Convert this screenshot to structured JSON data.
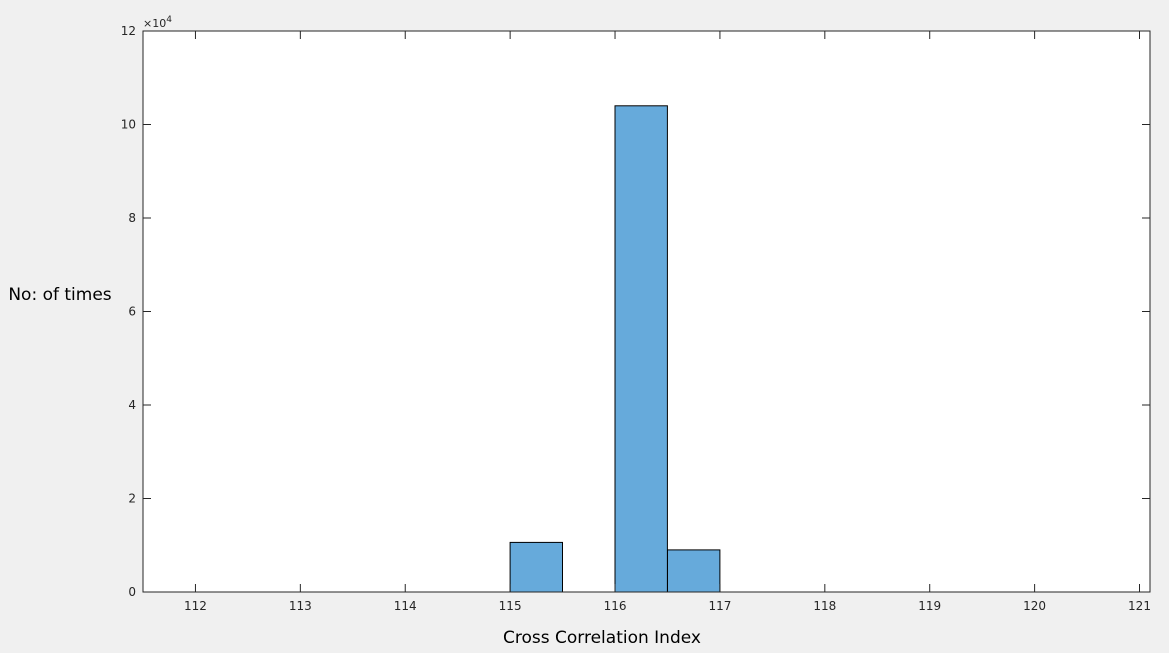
{
  "chart_data": {
    "type": "bar",
    "bin_edges": [
      111.5,
      112,
      112.5,
      113,
      113.5,
      114,
      114.5,
      115,
      115.5,
      116,
      116.5,
      117,
      117.5,
      118,
      118.5,
      119,
      119.5,
      120,
      120.5,
      121,
      121.5
    ],
    "values": [
      0,
      0,
      0,
      0,
      0,
      0,
      0,
      10600,
      0,
      104000,
      9000,
      0,
      0,
      0,
      0,
      0,
      0,
      0,
      0,
      0
    ],
    "xlabel": "Cross Correlation Index",
    "ylabel": "No: of times",
    "xlim": [
      111.5,
      121.1
    ],
    "ylim": [
      0,
      120000
    ],
    "x_ticks": [
      112,
      113,
      114,
      115,
      116,
      117,
      118,
      119,
      120,
      121
    ],
    "y_ticks": [
      0,
      2,
      4,
      6,
      8,
      10,
      12
    ],
    "y_exponent_base": "×10",
    "y_exponent_power": "4",
    "y_multiplier": 10000,
    "bar_color": "#66aadb",
    "bar_edge_color": "#000000",
    "grid": false
  }
}
